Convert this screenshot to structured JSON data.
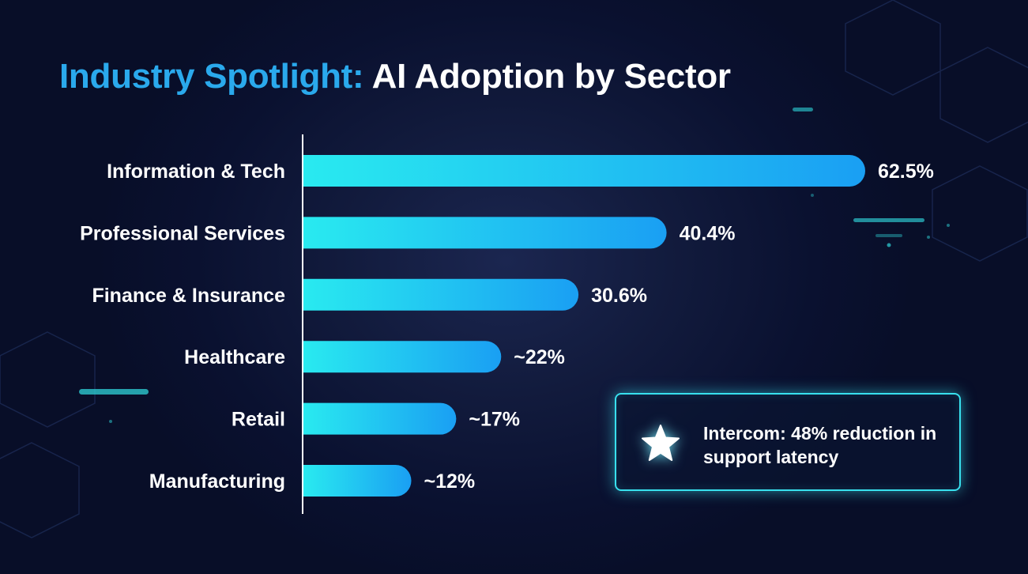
{
  "title": {
    "accent": "Industry Spotlight:",
    "rest": " AI Adoption by Sector"
  },
  "chart_data": {
    "type": "bar",
    "orientation": "horizontal",
    "title": "Industry Spotlight: AI Adoption by Sector",
    "categories": [
      "Information & Tech",
      "Professional Services",
      "Finance & Insurance",
      "Healthcare",
      "Retail",
      "Manufacturing"
    ],
    "values": [
      62.5,
      40.4,
      30.6,
      22,
      17,
      12
    ],
    "value_labels": [
      "62.5%",
      "40.4%",
      "30.6%",
      "~22%",
      "~17%",
      "~12%"
    ],
    "unit": "%",
    "xlim": [
      0,
      62.5
    ],
    "grid": false,
    "legend": "none",
    "colors": {
      "bar_start": "#29eaf0",
      "bar_end": "#1a9ff3",
      "axis": "#ffffff"
    }
  },
  "callout": {
    "icon": "star-icon",
    "text": "Intercom: 48% reduction in support latency",
    "border_color": "#38e0ee"
  }
}
